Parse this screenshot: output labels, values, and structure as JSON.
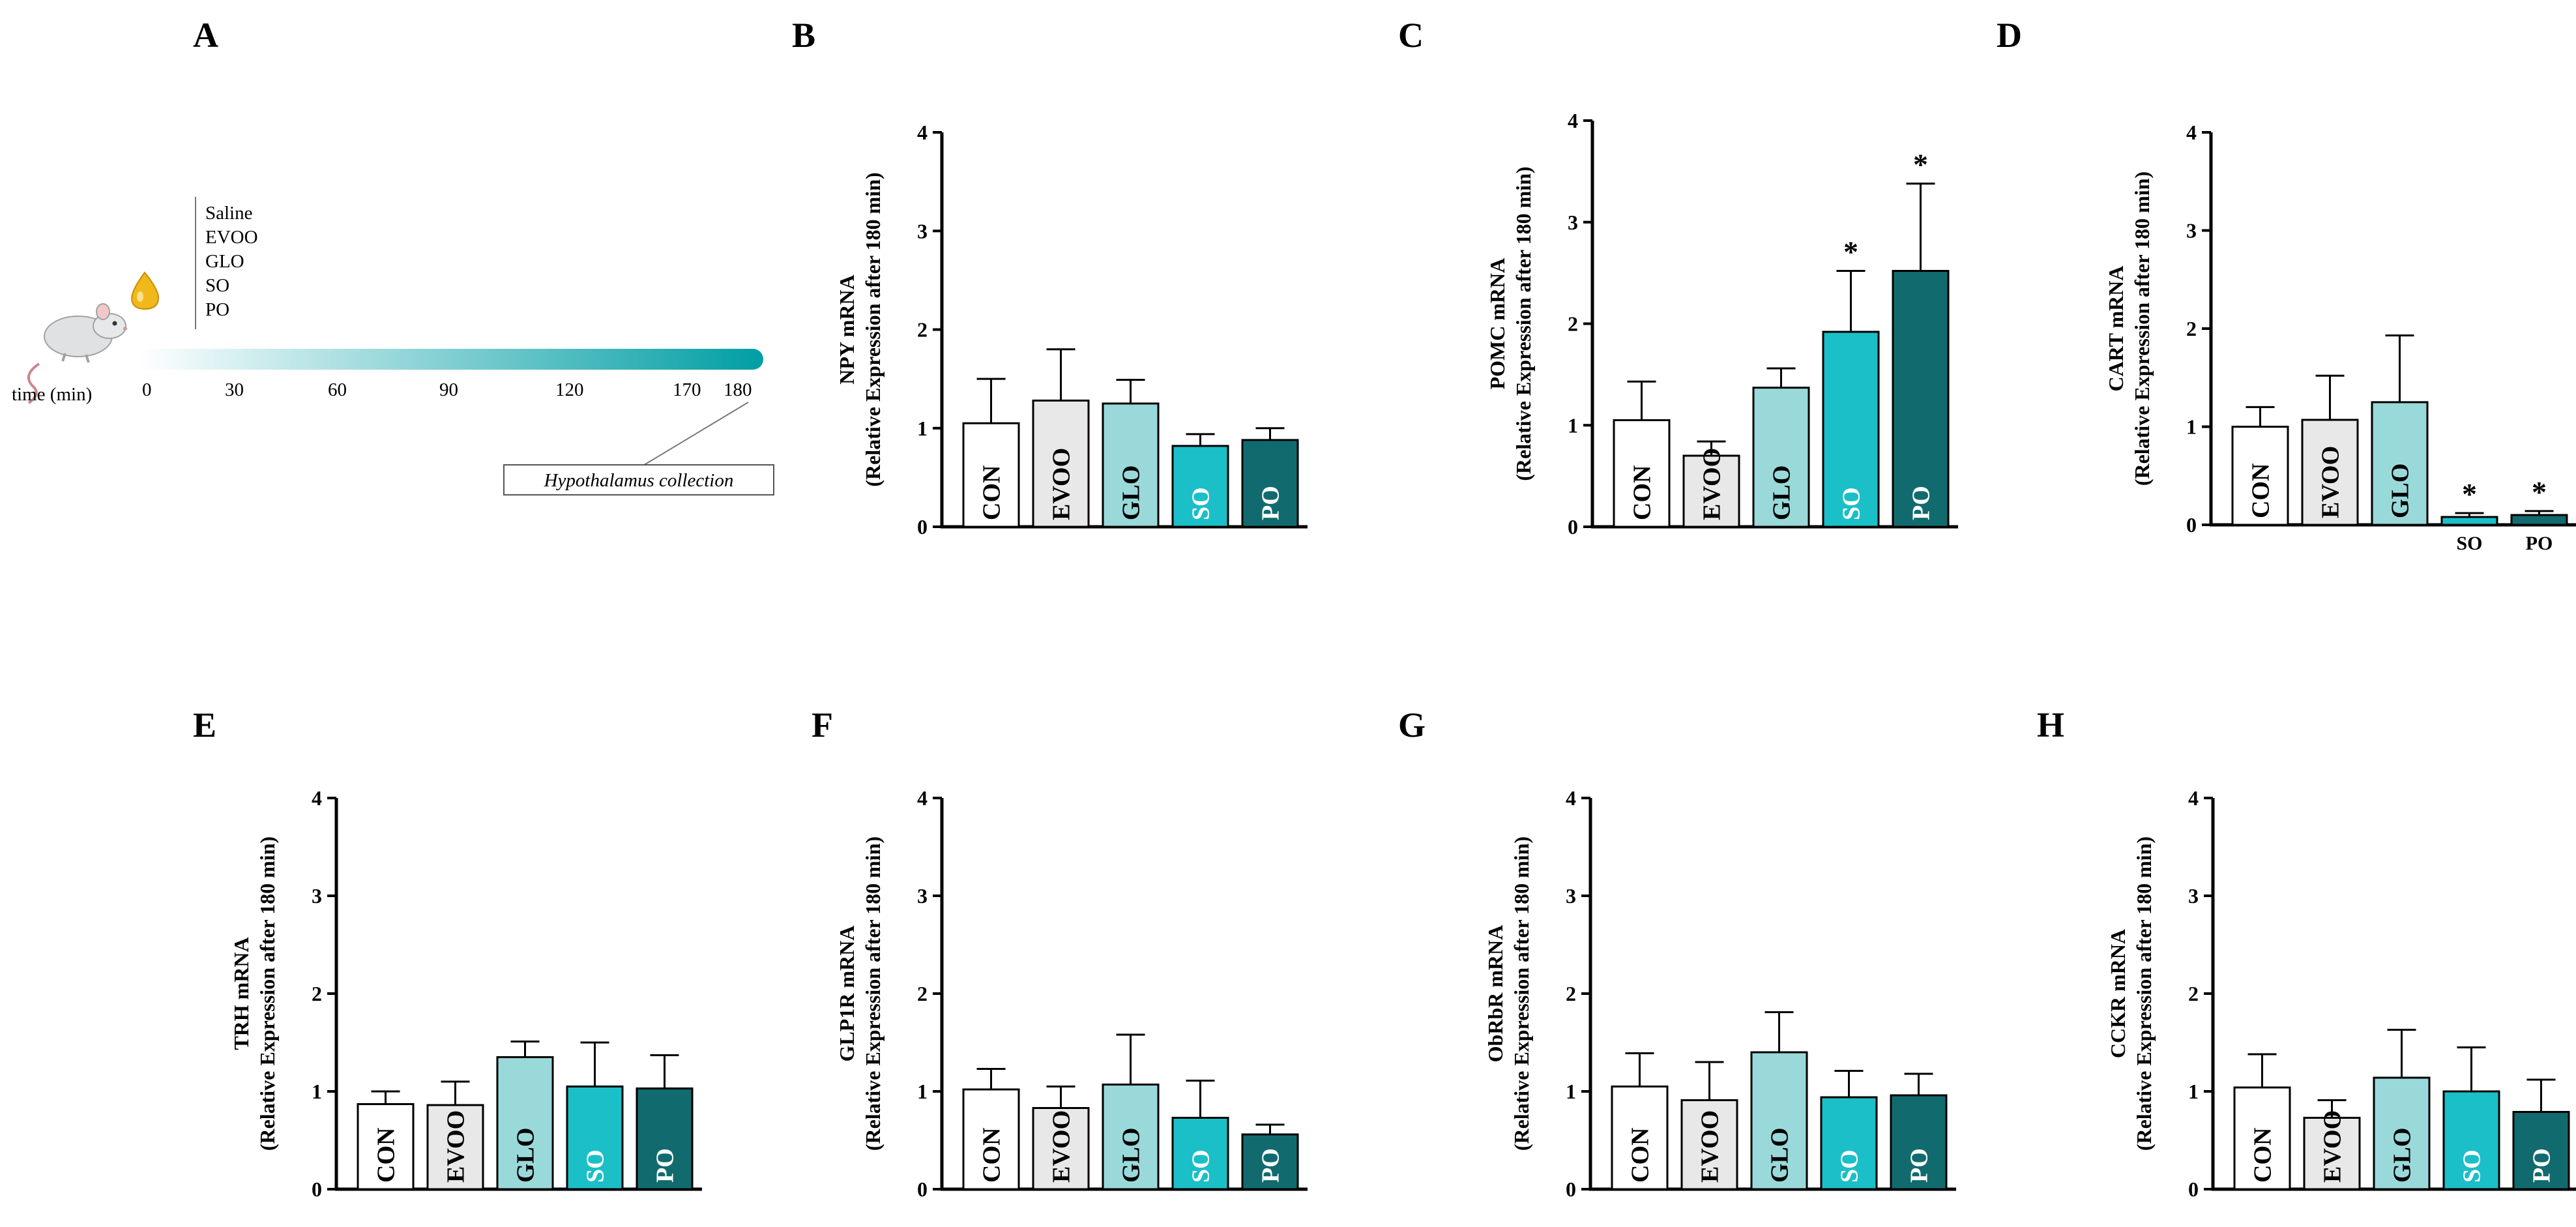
{
  "colors": {
    "CON": "#ffffff",
    "EVOO": "#e8e8e8",
    "GLO": "#9ad9da",
    "SO": "#1bbfc7",
    "PO": "#116b6e",
    "axis": "#000000",
    "timeline_start": "#ffffff",
    "timeline_end": "#009ea3",
    "droplet": "#f1b81b"
  },
  "panel_a": {
    "letter": "A",
    "treatments": [
      "Saline",
      "EVOO",
      "GLO",
      "SO",
      "PO"
    ],
    "time_label": "time (min)",
    "time_ticks": [
      "0",
      "30",
      "60",
      "90",
      "120",
      "170",
      "180"
    ],
    "collection_label": "Hypothalamus collection"
  },
  "chart_data": [
    {
      "panel": "B",
      "type": "bar",
      "ylabel": "NPY mRNA",
      "ylabel2": "(Relative Expression after 180 min)",
      "ylim": [
        0,
        4
      ],
      "yticks": [
        0,
        1,
        2,
        3,
        4
      ],
      "categories": [
        "CON",
        "EVOO",
        "GLO",
        "SO",
        "PO"
      ],
      "values": [
        1.05,
        1.28,
        1.25,
        0.82,
        0.88
      ],
      "errors": [
        0.45,
        0.52,
        0.24,
        0.12,
        0.12
      ],
      "significant": [
        false,
        false,
        false,
        false,
        false
      ],
      "bar_labels": [
        "CON",
        "EVOO",
        "GLO",
        "SO",
        "PO"
      ],
      "below_labels": [
        "",
        "",
        "",
        "",
        ""
      ]
    },
    {
      "panel": "C",
      "type": "bar",
      "ylabel": "POMC mRNA",
      "ylabel2": "(Relative Expression after 180 min)",
      "ylim": [
        0,
        4
      ],
      "yticks": [
        0,
        1,
        2,
        3,
        4
      ],
      "categories": [
        "CON",
        "EVOO",
        "GLO",
        "SO",
        "PO"
      ],
      "values": [
        1.05,
        0.7,
        1.37,
        1.92,
        2.52
      ],
      "errors": [
        0.38,
        0.14,
        0.19,
        0.6,
        0.86
      ],
      "significant": [
        false,
        false,
        false,
        true,
        true
      ],
      "bar_labels": [
        "CON",
        "EVOO",
        "GLO",
        "SO",
        "PO"
      ],
      "below_labels": [
        "",
        "",
        "",
        "",
        ""
      ]
    },
    {
      "panel": "D",
      "type": "bar",
      "ylabel": "CART mRNA",
      "ylabel2": "(Relative Expression after 180 min)",
      "ylim": [
        0,
        4
      ],
      "yticks": [
        0,
        1,
        2,
        3,
        4
      ],
      "categories": [
        "CON",
        "EVOO",
        "GLO",
        "SO",
        "PO"
      ],
      "values": [
        1.0,
        1.07,
        1.25,
        0.08,
        0.1
      ],
      "errors": [
        0.2,
        0.45,
        0.68,
        0.04,
        0.04
      ],
      "significant": [
        false,
        false,
        false,
        true,
        true
      ],
      "bar_labels": [
        "CON",
        "EVOO",
        "GLO",
        "",
        ""
      ],
      "below_labels": [
        "",
        "",
        "",
        "SO",
        "PO"
      ]
    },
    {
      "panel": "E",
      "type": "bar",
      "ylabel": "TRH mRNA",
      "ylabel2": "(Relative Expression after 180 min)",
      "ylim": [
        0,
        4
      ],
      "yticks": [
        0,
        1,
        2,
        3,
        4
      ],
      "categories": [
        "CON",
        "EVOO",
        "GLO",
        "SO",
        "PO"
      ],
      "values": [
        0.87,
        0.86,
        1.35,
        1.05,
        1.03
      ],
      "errors": [
        0.13,
        0.24,
        0.16,
        0.45,
        0.34
      ],
      "significant": [
        false,
        false,
        false,
        false,
        false
      ],
      "bar_labels": [
        "CON",
        "EVOO",
        "GLO",
        "SO",
        "PO"
      ],
      "below_labels": [
        "",
        "",
        "",
        "",
        ""
      ]
    },
    {
      "panel": "F",
      "type": "bar",
      "ylabel": "GLP1R mRNA",
      "ylabel2": "(Relative Expression after 180 min)",
      "ylim": [
        0,
        4
      ],
      "yticks": [
        0,
        1,
        2,
        3,
        4
      ],
      "categories": [
        "CON",
        "EVOO",
        "GLO",
        "SO",
        "PO"
      ],
      "values": [
        1.02,
        0.83,
        1.07,
        0.73,
        0.56
      ],
      "errors": [
        0.21,
        0.22,
        0.51,
        0.38,
        0.1
      ],
      "significant": [
        false,
        false,
        false,
        false,
        false
      ],
      "bar_labels": [
        "CON",
        "EVOO",
        "GLO",
        "SO",
        "PO"
      ],
      "below_labels": [
        "",
        "",
        "",
        "",
        ""
      ]
    },
    {
      "panel": "G",
      "type": "bar",
      "ylabel": "ObRbR mRNA",
      "ylabel2": "(Relative Expression after 180 min)",
      "ylim": [
        0,
        4
      ],
      "yticks": [
        0,
        1,
        2,
        3,
        4
      ],
      "categories": [
        "CON",
        "EVOO",
        "GLO",
        "SO",
        "PO"
      ],
      "values": [
        1.05,
        0.91,
        1.4,
        0.94,
        0.96
      ],
      "errors": [
        0.34,
        0.39,
        0.41,
        0.27,
        0.22
      ],
      "significant": [
        false,
        false,
        false,
        false,
        false
      ],
      "bar_labels": [
        "CON",
        "EVOO",
        "GLO",
        "SO",
        "PO"
      ],
      "below_labels": [
        "",
        "",
        "",
        "",
        ""
      ]
    },
    {
      "panel": "H",
      "type": "bar",
      "ylabel": "CCKR mRNA",
      "ylabel2": "(Relative Expression after 180 min)",
      "ylim": [
        0,
        4
      ],
      "yticks": [
        0,
        1,
        2,
        3,
        4
      ],
      "categories": [
        "CON",
        "EVOO",
        "GLO",
        "SO",
        "PO"
      ],
      "values": [
        1.04,
        0.73,
        1.14,
        1.0,
        0.79
      ],
      "errors": [
        0.34,
        0.18,
        0.49,
        0.45,
        0.33
      ],
      "significant": [
        false,
        false,
        false,
        false,
        false
      ],
      "bar_labels": [
        "CON",
        "EVOO",
        "GLO",
        "SO",
        "PO"
      ],
      "below_labels": [
        "",
        "",
        "",
        "",
        ""
      ]
    }
  ]
}
